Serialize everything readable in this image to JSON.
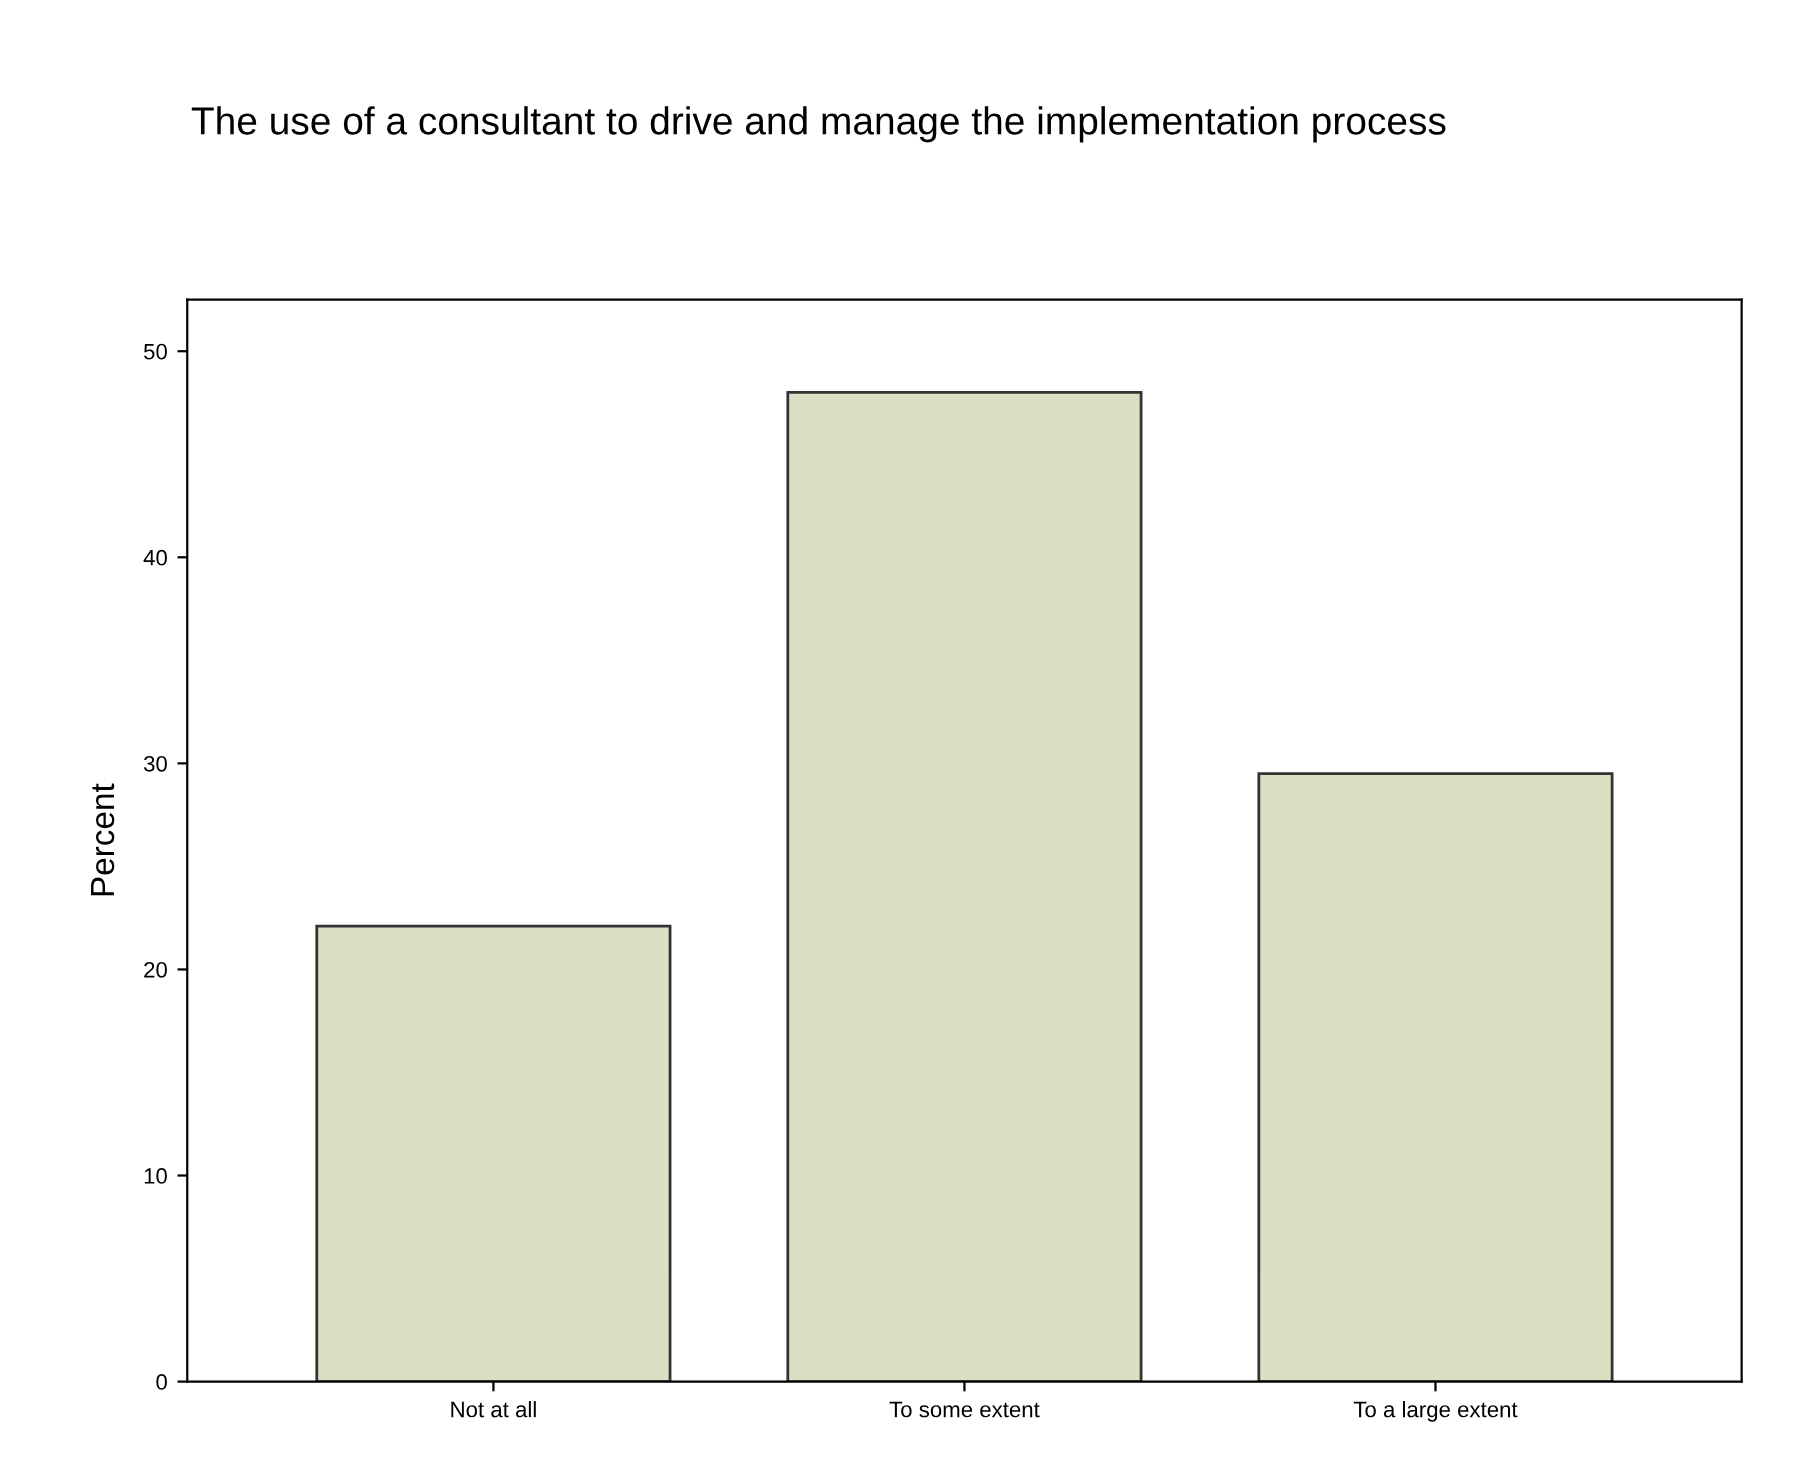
{
  "chart_data": {
    "type": "bar",
    "title": "The use of a consultant to drive and manage the implementation process",
    "ylabel": "Percent",
    "categories": [
      "Not at all",
      "To some extent",
      "To a large extent"
    ],
    "values": [
      22.1,
      48.0,
      29.5
    ],
    "color": "#dcdfc3",
    "ylim": [
      0,
      52.5
    ],
    "yticks": [
      0,
      10,
      20,
      30,
      40,
      50
    ],
    "grid": false
  }
}
